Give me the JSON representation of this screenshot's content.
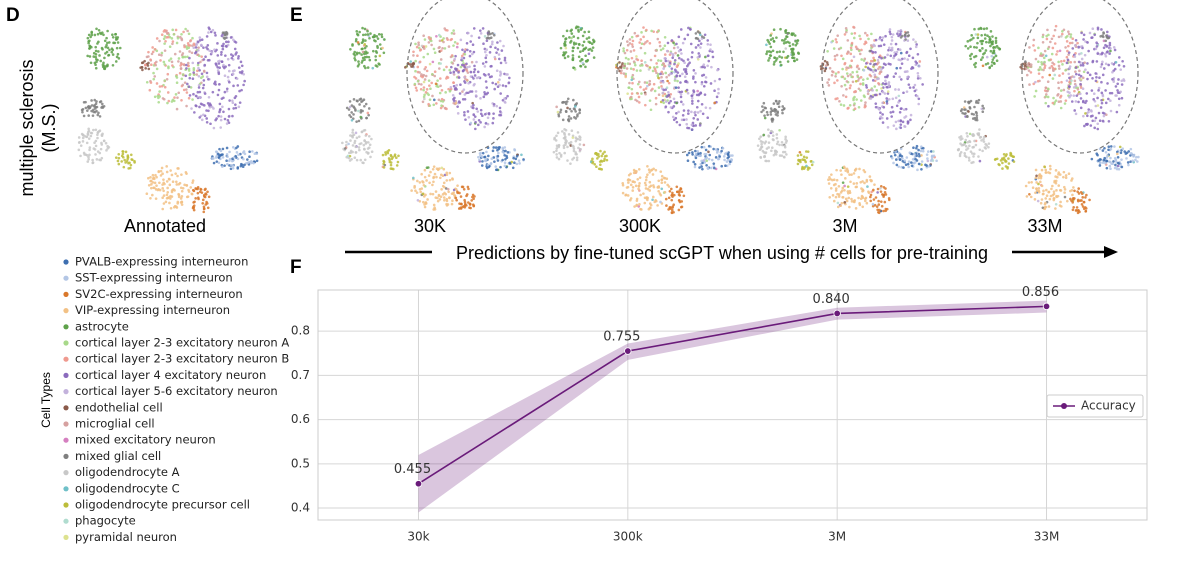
{
  "panels": {
    "d": "D",
    "e": "E",
    "f": "F"
  },
  "dataset_label": [
    "multiple sclerosis",
    "(M.S.)"
  ],
  "umap_titles": [
    "Annotated",
    "30K",
    "300K",
    "3M",
    "33M"
  ],
  "arrow_caption": "Predictions by fine-tuned scGPT when using # cells for pre-training",
  "legend": {
    "title": "Cell Types",
    "items": [
      {
        "name": "PVALB-expressing interneuron",
        "color": "#3e6fb0"
      },
      {
        "name": "SST-expressing interneuron",
        "color": "#b3c6e5"
      },
      {
        "name": "SV2C-expressing interneuron",
        "color": "#d9782b"
      },
      {
        "name": "VIP-expressing interneuron",
        "color": "#f2c185"
      },
      {
        "name": "astrocyte",
        "color": "#5ea14a"
      },
      {
        "name": "cortical layer 2-3 excitatory neuron A",
        "color": "#a8d98a"
      },
      {
        "name": "cortical layer 2-3 excitatory neuron B",
        "color": "#ef9a8f"
      },
      {
        "name": "cortical layer 4 excitatory neuron",
        "color": "#8b6bbd"
      },
      {
        "name": "cortical layer 5-6 excitatory neuron",
        "color": "#c3b2dc"
      },
      {
        "name": "endothelial cell",
        "color": "#8a5a4a"
      },
      {
        "name": "microglial cell",
        "color": "#d6a1a0"
      },
      {
        "name": "mixed excitatory neuron",
        "color": "#d57fc0"
      },
      {
        "name": "mixed glial cell",
        "color": "#7f7f7f"
      },
      {
        "name": "oligodendrocyte A",
        "color": "#c8c8c8"
      },
      {
        "name": "oligodendrocyte C",
        "color": "#6fc0c8"
      },
      {
        "name": "oligodendrocyte precursor cell",
        "color": "#bcbd3a"
      },
      {
        "name": "phagocyte",
        "color": "#b0dccf"
      },
      {
        "name": "pyramidal neuron",
        "color": "#dde28f"
      }
    ]
  },
  "chart_data": {
    "type": "line",
    "categories": [
      "30k",
      "300k",
      "3M",
      "33M"
    ],
    "series": [
      {
        "name": "Accuracy",
        "color": "#6a1b7a",
        "values": [
          0.455,
          0.755,
          0.84,
          0.856
        ],
        "value_labels": [
          "0.455",
          "0.755",
          "0.840",
          "0.856"
        ],
        "ci_lower": [
          0.39,
          0.735,
          0.826,
          0.842
        ],
        "ci_upper": [
          0.52,
          0.772,
          0.853,
          0.869
        ]
      }
    ],
    "ylim": [
      0.373,
      0.893
    ],
    "yticks": [
      0.4,
      0.5,
      0.6,
      0.7,
      0.8
    ],
    "grid": true,
    "legend_position": "right"
  }
}
